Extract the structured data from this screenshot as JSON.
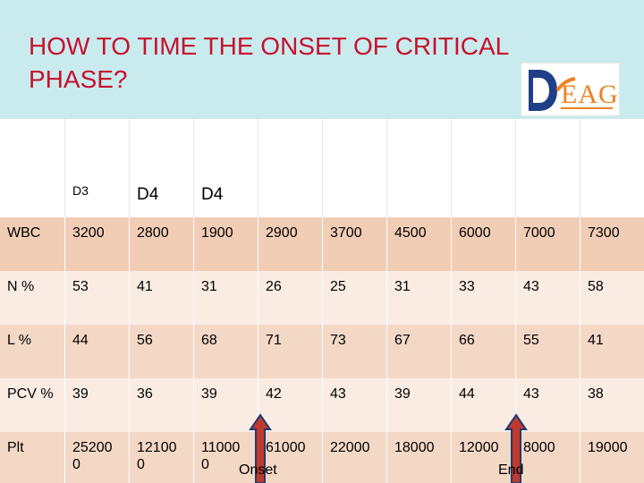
{
  "title": "HOW TO TIME THE ONSET OF CRITICAL PHASE?",
  "logo_text": "EAG",
  "colors": {
    "title": "#c8102e",
    "title_band": "#c9ebee",
    "row_odd": "#f4d8c6",
    "row_even": "#fbece3",
    "arrow_fill": "#c0392b",
    "arrow_stroke": "#1f3b73"
  },
  "table": {
    "header": [
      "",
      "D3",
      "D4",
      "D4",
      "",
      "",
      "",
      "",
      "",
      ""
    ],
    "rows": [
      {
        "label": "WBC",
        "values": [
          "3200",
          "2800",
          "1900",
          "2900",
          "3700",
          "4500",
          "6000",
          "7000",
          "7300"
        ]
      },
      {
        "label": "N %",
        "values": [
          "53",
          "41",
          "31",
          "26",
          "25",
          "31",
          "33",
          "43",
          "58"
        ]
      },
      {
        "label": "L %",
        "values": [
          "44",
          "56",
          "68",
          "71",
          "73",
          "67",
          "66",
          "55",
          "41"
        ]
      },
      {
        "label": "PCV %",
        "values": [
          "39",
          "36",
          "39",
          "42",
          "43",
          "39",
          "44",
          "43",
          "38"
        ]
      },
      {
        "label": "Plt",
        "values": [
          "25200\n0",
          "12100\n0",
          "11000\n0",
          "61000",
          "22000",
          "18000",
          "12000",
          "8000",
          "19000"
        ]
      }
    ]
  },
  "annotations": {
    "onset": "Onset",
    "end": "End"
  }
}
